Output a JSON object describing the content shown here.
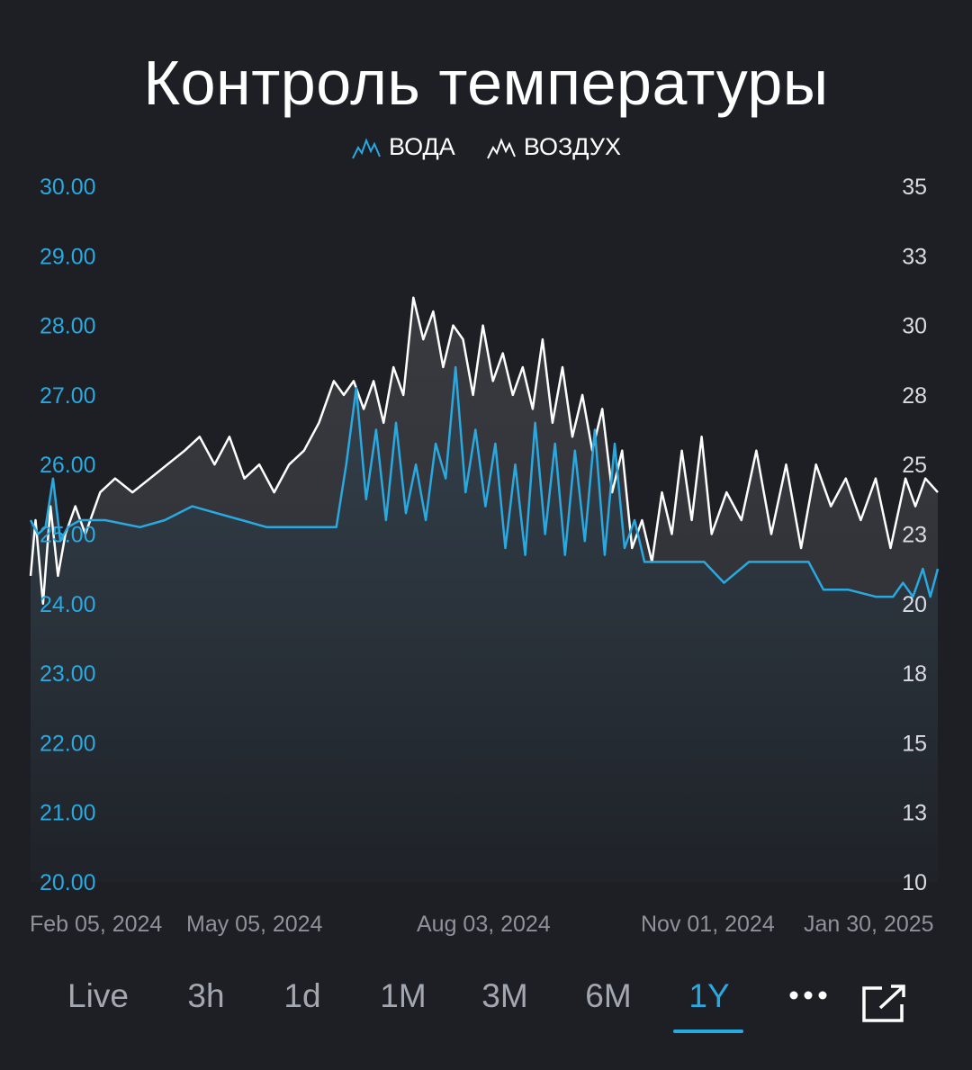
{
  "title": "Контроль температуры",
  "legend": [
    {
      "label": "ВОДА",
      "color": "#29a9e0",
      "icon": "line-chart-icon"
    },
    {
      "label": "ВОЗДУХ",
      "color": "#ffffff",
      "icon": "line-chart-icon"
    }
  ],
  "colors": {
    "water": "#29a9e0",
    "air": "#ffffff",
    "background": "#1d1f25",
    "accent": "#29a9e0"
  },
  "chart_data": {
    "type": "line",
    "x_tick_labels": [
      "Feb 05, 2024",
      "May 05, 2024",
      "Aug 03, 2024",
      "Nov 01, 2024",
      "Jan 30, 2025"
    ],
    "x_range": [
      "2024-01-31",
      "2025-01-30"
    ],
    "y_left": {
      "range": [
        20,
        30
      ],
      "tick_labels": [
        "30.00",
        "29.00",
        "28.00",
        "27.00",
        "26.00",
        "25.00",
        "24.00",
        "23.00",
        "22.00",
        "21.00",
        "20.00"
      ]
    },
    "y_right": {
      "range": [
        10,
        35
      ],
      "tick_labels": [
        "35",
        "33",
        "30",
        "28",
        "25",
        "23",
        "20",
        "18",
        "15",
        "13",
        "10"
      ]
    },
    "series": [
      {
        "name": "ВОДА",
        "axis": "left",
        "x": [
          "2024-01-31",
          "2024-02-03",
          "2024-02-06",
          "2024-02-09",
          "2024-02-12",
          "2024-02-15",
          "2024-02-20",
          "2024-03-01",
          "2024-03-15",
          "2024-03-25",
          "2024-04-05",
          "2024-04-15",
          "2024-04-25",
          "2024-05-05",
          "2024-05-15",
          "2024-05-25",
          "2024-06-02",
          "2024-06-06",
          "2024-06-10",
          "2024-06-14",
          "2024-06-18",
          "2024-06-22",
          "2024-06-26",
          "2024-06-30",
          "2024-07-04",
          "2024-07-08",
          "2024-07-12",
          "2024-07-16",
          "2024-07-20",
          "2024-07-24",
          "2024-07-28",
          "2024-08-01",
          "2024-08-05",
          "2024-08-09",
          "2024-08-13",
          "2024-08-17",
          "2024-08-21",
          "2024-08-25",
          "2024-08-29",
          "2024-09-02",
          "2024-09-06",
          "2024-09-10",
          "2024-09-14",
          "2024-09-18",
          "2024-09-22",
          "2024-09-26",
          "2024-09-30",
          "2024-10-04",
          "2024-10-08",
          "2024-10-12",
          "2024-10-20",
          "2024-10-28",
          "2024-11-05",
          "2024-11-15",
          "2024-11-25",
          "2024-12-05",
          "2024-12-09",
          "2024-12-15",
          "2024-12-25",
          "2025-01-05",
          "2025-01-12",
          "2025-01-16",
          "2025-01-20",
          "2025-01-24",
          "2025-01-27",
          "2025-01-30"
        ],
        "y": [
          25.2,
          25.0,
          25.1,
          25.8,
          24.9,
          25.1,
          25.2,
          25.2,
          25.1,
          25.2,
          25.4,
          25.3,
          25.2,
          25.1,
          25.1,
          25.1,
          25.1,
          26.0,
          27.1,
          25.5,
          26.5,
          25.2,
          26.6,
          25.3,
          26.0,
          25.2,
          26.3,
          25.8,
          27.4,
          25.6,
          26.5,
          25.4,
          26.3,
          24.8,
          26.0,
          24.7,
          26.6,
          25.0,
          26.3,
          24.7,
          26.2,
          24.9,
          26.5,
          24.7,
          26.3,
          24.8,
          25.2,
          24.6,
          24.6,
          24.6,
          24.6,
          24.6,
          24.3,
          24.6,
          24.6,
          24.6,
          24.6,
          24.2,
          24.2,
          24.1,
          24.1,
          24.3,
          24.1,
          24.5,
          24.1,
          24.5
        ]
      },
      {
        "name": "ВОЗДУХ",
        "axis": "right",
        "x": [
          "2024-01-31",
          "2024-02-02",
          "2024-02-05",
          "2024-02-08",
          "2024-02-11",
          "2024-02-14",
          "2024-02-18",
          "2024-02-22",
          "2024-02-28",
          "2024-03-05",
          "2024-03-12",
          "2024-03-19",
          "2024-03-26",
          "2024-04-02",
          "2024-04-08",
          "2024-04-14",
          "2024-04-20",
          "2024-04-26",
          "2024-05-02",
          "2024-05-08",
          "2024-05-14",
          "2024-05-20",
          "2024-05-26",
          "2024-06-01",
          "2024-06-05",
          "2024-06-09",
          "2024-06-13",
          "2024-06-17",
          "2024-06-21",
          "2024-06-25",
          "2024-06-29",
          "2024-07-03",
          "2024-07-07",
          "2024-07-11",
          "2024-07-15",
          "2024-07-19",
          "2024-07-23",
          "2024-07-27",
          "2024-07-31",
          "2024-08-04",
          "2024-08-08",
          "2024-08-12",
          "2024-08-16",
          "2024-08-20",
          "2024-08-24",
          "2024-08-28",
          "2024-09-01",
          "2024-09-05",
          "2024-09-09",
          "2024-09-13",
          "2024-09-17",
          "2024-09-21",
          "2024-09-25",
          "2024-09-29",
          "2024-10-03",
          "2024-10-07",
          "2024-10-11",
          "2024-10-15",
          "2024-10-19",
          "2024-10-23",
          "2024-10-27",
          "2024-10-31",
          "2024-11-06",
          "2024-11-12",
          "2024-11-18",
          "2024-11-24",
          "2024-11-30",
          "2024-12-06",
          "2024-12-12",
          "2024-12-18",
          "2024-12-24",
          "2024-12-30",
          "2025-01-05",
          "2025-01-11",
          "2025-01-17",
          "2025-01-21",
          "2025-01-25",
          "2025-01-30"
        ],
        "y": [
          21.0,
          23.0,
          20.0,
          23.5,
          21.0,
          22.5,
          23.5,
          22.5,
          24.0,
          24.5,
          24.0,
          24.5,
          25.0,
          25.5,
          26.0,
          25.0,
          26.0,
          24.5,
          25.0,
          24.0,
          25.0,
          25.5,
          26.5,
          28.0,
          27.5,
          28.0,
          27.0,
          28.0,
          26.5,
          28.5,
          27.5,
          31.0,
          29.5,
          30.5,
          28.5,
          30.0,
          29.5,
          27.5,
          30.0,
          28.0,
          29.0,
          27.5,
          28.5,
          27.0,
          29.5,
          26.5,
          28.5,
          26.0,
          27.5,
          25.5,
          27.0,
          24.0,
          25.5,
          22.0,
          23.0,
          21.5,
          24.0,
          22.5,
          25.5,
          23.0,
          26.0,
          22.5,
          24.0,
          23.0,
          25.5,
          22.5,
          25.0,
          22.0,
          25.0,
          23.5,
          24.5,
          23.0,
          24.5,
          22.0,
          24.5,
          23.5,
          24.5,
          24.0
        ]
      }
    ],
    "grid": false
  },
  "range_buttons": [
    {
      "label": "Live",
      "active": false
    },
    {
      "label": "3h",
      "active": false
    },
    {
      "label": "1d",
      "active": false
    },
    {
      "label": "1M",
      "active": false
    },
    {
      "label": "3M",
      "active": false
    },
    {
      "label": "6M",
      "active": false
    },
    {
      "label": "1Y",
      "active": true
    }
  ],
  "toolbar_icons": {
    "more": "more-dots-icon",
    "expand": "external-expand-icon"
  }
}
